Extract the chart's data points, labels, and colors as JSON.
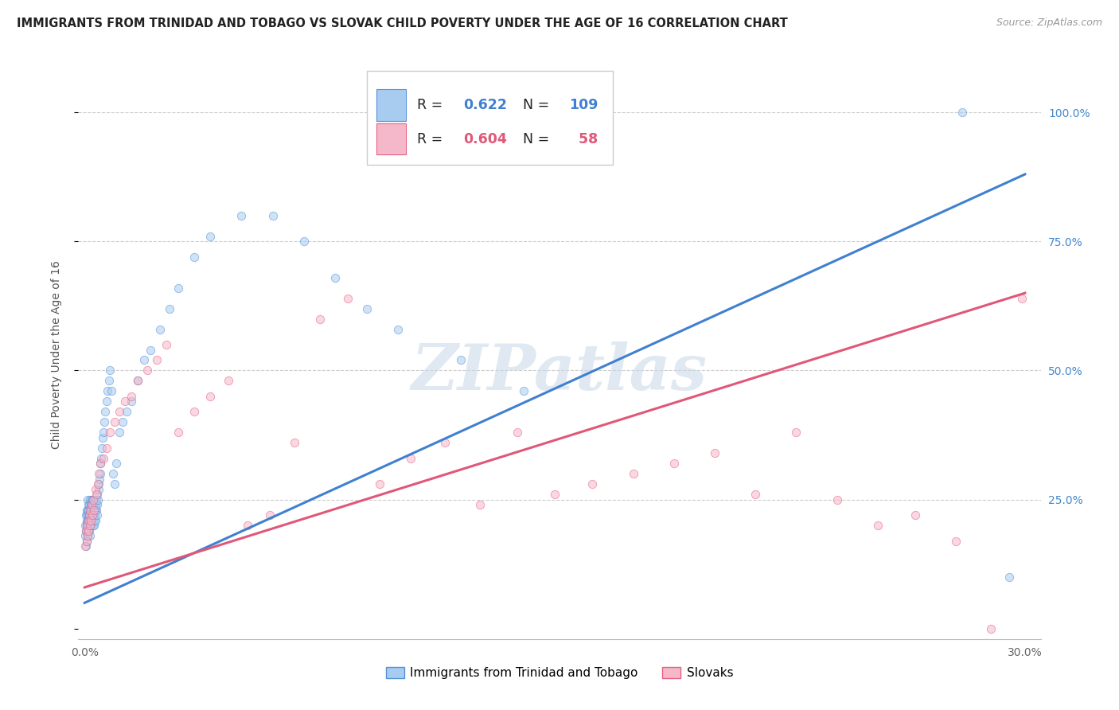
{
  "title": "IMMIGRANTS FROM TRINIDAD AND TOBAGO VS SLOVAK CHILD POVERTY UNDER THE AGE OF 16 CORRELATION CHART",
  "source": "Source: ZipAtlas.com",
  "ylabel": "Child Poverty Under the Age of 16",
  "blue_R": 0.622,
  "blue_N": 109,
  "pink_R": 0.604,
  "pink_N": 58,
  "blue_color": "#a8ccf0",
  "pink_color": "#f5b8cb",
  "blue_edge_color": "#5590d8",
  "pink_edge_color": "#e86080",
  "blue_line_color": "#4080d0",
  "pink_line_color": "#e05878",
  "watermark": "ZIPatlas",
  "legend_label_blue": "Immigrants from Trinidad and Tobago",
  "legend_label_pink": "Slovaks",
  "blue_line_x": [
    0.0,
    0.3
  ],
  "blue_line_y": [
    0.05,
    0.88
  ],
  "pink_line_x": [
    0.0,
    0.3
  ],
  "pink_line_y": [
    0.08,
    0.65
  ],
  "xlim": [
    -0.002,
    0.305
  ],
  "ylim": [
    -0.02,
    1.08
  ],
  "background_color": "#ffffff",
  "grid_color": "#cccccc",
  "right_tick_color": "#4488cc",
  "scatter_size": 55,
  "scatter_alpha": 0.55,
  "line_width": 2.2,
  "blue_scatter_x": [
    0.0002,
    0.0003,
    0.0004,
    0.0005,
    0.0005,
    0.0006,
    0.0006,
    0.0007,
    0.0007,
    0.0008,
    0.0008,
    0.0009,
    0.0009,
    0.001,
    0.001,
    0.001,
    0.0011,
    0.0011,
    0.0012,
    0.0012,
    0.0013,
    0.0013,
    0.0014,
    0.0014,
    0.0015,
    0.0015,
    0.0016,
    0.0016,
    0.0017,
    0.0017,
    0.0018,
    0.0018,
    0.0019,
    0.0019,
    0.002,
    0.002,
    0.0021,
    0.0021,
    0.0022,
    0.0022,
    0.0023,
    0.0023,
    0.0024,
    0.0025,
    0.0025,
    0.0026,
    0.0026,
    0.0027,
    0.0027,
    0.0028,
    0.0028,
    0.0029,
    0.003,
    0.003,
    0.0031,
    0.0031,
    0.0032,
    0.0033,
    0.0033,
    0.0034,
    0.0035,
    0.0036,
    0.0037,
    0.0038,
    0.0039,
    0.004,
    0.0041,
    0.0042,
    0.0044,
    0.0045,
    0.0047,
    0.0049,
    0.0051,
    0.0053,
    0.0055,
    0.0058,
    0.006,
    0.0063,
    0.0066,
    0.007,
    0.0073,
    0.0077,
    0.008,
    0.0085,
    0.009,
    0.0095,
    0.01,
    0.011,
    0.012,
    0.0135,
    0.015,
    0.017,
    0.019,
    0.021,
    0.024,
    0.027,
    0.03,
    0.035,
    0.04,
    0.05,
    0.06,
    0.07,
    0.08,
    0.09,
    0.1,
    0.12,
    0.14,
    0.28,
    0.295
  ],
  "blue_scatter_y": [
    0.18,
    0.2,
    0.16,
    0.22,
    0.19,
    0.17,
    0.21,
    0.23,
    0.2,
    0.19,
    0.22,
    0.21,
    0.18,
    0.2,
    0.23,
    0.25,
    0.19,
    0.22,
    0.21,
    0.24,
    0.2,
    0.23,
    0.22,
    0.19,
    0.21,
    0.24,
    0.23,
    0.2,
    0.22,
    0.25,
    0.21,
    0.18,
    0.24,
    0.22,
    0.2,
    0.23,
    0.22,
    0.25,
    0.24,
    0.21,
    0.23,
    0.2,
    0.22,
    0.25,
    0.24,
    0.23,
    0.21,
    0.24,
    0.22,
    0.2,
    0.23,
    0.25,
    0.22,
    0.2,
    0.24,
    0.23,
    0.21,
    0.25,
    0.22,
    0.24,
    0.23,
    0.21,
    0.25,
    0.23,
    0.22,
    0.24,
    0.26,
    0.25,
    0.27,
    0.28,
    0.29,
    0.3,
    0.32,
    0.33,
    0.35,
    0.37,
    0.38,
    0.4,
    0.42,
    0.44,
    0.46,
    0.48,
    0.5,
    0.46,
    0.3,
    0.28,
    0.32,
    0.38,
    0.4,
    0.42,
    0.44,
    0.48,
    0.52,
    0.54,
    0.58,
    0.62,
    0.66,
    0.72,
    0.76,
    0.8,
    0.8,
    0.75,
    0.68,
    0.62,
    0.58,
    0.52,
    0.46,
    1.0,
    0.1
  ],
  "pink_scatter_x": [
    0.0003,
    0.0005,
    0.0007,
    0.0008,
    0.001,
    0.0012,
    0.0013,
    0.0015,
    0.0017,
    0.0018,
    0.002,
    0.0023,
    0.0025,
    0.0028,
    0.003,
    0.0035,
    0.0038,
    0.0042,
    0.0046,
    0.005,
    0.006,
    0.007,
    0.008,
    0.0095,
    0.011,
    0.013,
    0.015,
    0.017,
    0.02,
    0.023,
    0.026,
    0.03,
    0.035,
    0.04,
    0.046,
    0.052,
    0.059,
    0.067,
    0.075,
    0.084,
    0.094,
    0.104,
    0.115,
    0.126,
    0.138,
    0.15,
    0.162,
    0.175,
    0.188,
    0.201,
    0.214,
    0.227,
    0.24,
    0.253,
    0.265,
    0.278,
    0.289,
    0.299
  ],
  "pink_scatter_y": [
    0.16,
    0.19,
    0.17,
    0.2,
    0.18,
    0.21,
    0.19,
    0.22,
    0.2,
    0.23,
    0.21,
    0.24,
    0.22,
    0.25,
    0.23,
    0.27,
    0.26,
    0.28,
    0.3,
    0.32,
    0.33,
    0.35,
    0.38,
    0.4,
    0.42,
    0.44,
    0.45,
    0.48,
    0.5,
    0.52,
    0.55,
    0.38,
    0.42,
    0.45,
    0.48,
    0.2,
    0.22,
    0.36,
    0.6,
    0.64,
    0.28,
    0.33,
    0.36,
    0.24,
    0.38,
    0.26,
    0.28,
    0.3,
    0.32,
    0.34,
    0.26,
    0.38,
    0.25,
    0.2,
    0.22,
    0.17,
    0.0,
    0.64
  ]
}
